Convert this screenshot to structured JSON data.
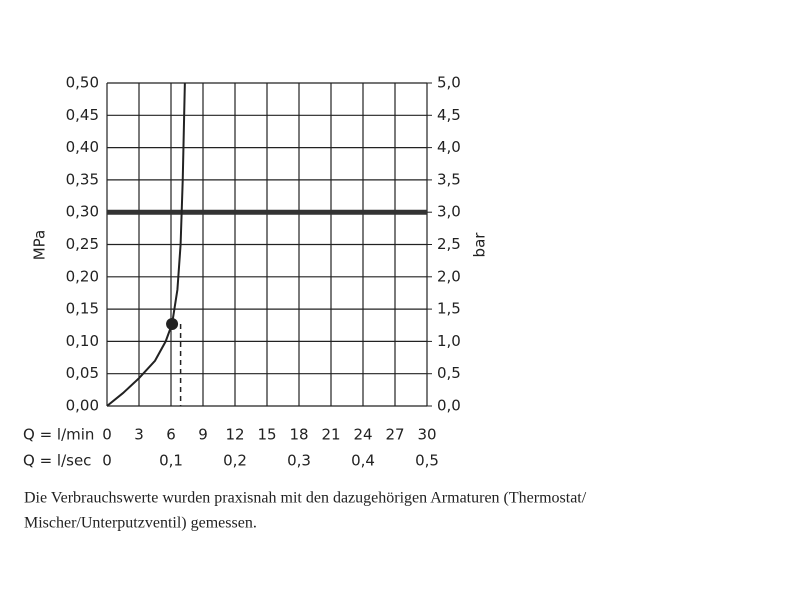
{
  "chart_data": {
    "type": "line",
    "ylabel": "MPa",
    "y2label": "bar",
    "xrow_label": "Q = l/min",
    "x2row_label": "Q = l/sec",
    "x": [
      0,
      1.5,
      3,
      4.5,
      5.5,
      6.1,
      6.6,
      6.9,
      7.1,
      7.3
    ],
    "values": [
      0,
      0.02,
      0.043,
      0.07,
      0.1,
      0.127,
      0.18,
      0.25,
      0.35,
      0.5
    ],
    "color": "#222222",
    "point": {
      "x": 6.1,
      "y": 0.127
    },
    "dashed_x": 6.9,
    "reference_y": 0.3,
    "xlim": [
      0,
      30
    ],
    "xticks": [
      0,
      3,
      6,
      9,
      12,
      15,
      18,
      21,
      24,
      27,
      30
    ],
    "x2lim": [
      0,
      0.5
    ],
    "x2ticks": [
      0,
      {
        "value": 0.1,
        "label": "0,1"
      },
      {
        "value": 0.2,
        "label": "0,2"
      },
      {
        "value": 0.3,
        "label": "0,3"
      },
      {
        "value": 0.4,
        "label": "0,4"
      },
      {
        "value": 0.5,
        "label": "0,5"
      }
    ],
    "ylim": [
      0,
      0.5
    ],
    "yticks": [
      {
        "value": 0,
        "label": "0,00"
      },
      {
        "value": 0.05,
        "label": "0,05"
      },
      {
        "value": 0.1,
        "label": "0,10"
      },
      {
        "value": 0.15,
        "label": "0,15"
      },
      {
        "value": 0.2,
        "label": "0,20"
      },
      {
        "value": 0.25,
        "label": "0,25"
      },
      {
        "value": 0.3,
        "label": "0,30"
      },
      {
        "value": 0.35,
        "label": "0,35"
      },
      {
        "value": 0.4,
        "label": "0,40"
      },
      {
        "value": 0.45,
        "label": "0,45"
      },
      {
        "value": 0.5,
        "label": "0,50"
      }
    ],
    "y2lim": [
      0,
      5
    ],
    "y2ticks": [
      {
        "value": 0,
        "label": "0,0"
      },
      {
        "value": 0.5,
        "label": "0,5"
      },
      {
        "value": 1,
        "label": "1,0"
      },
      {
        "value": 1.5,
        "label": "1,5"
      },
      {
        "value": 2,
        "label": "2,0"
      },
      {
        "value": 2.5,
        "label": "2,5"
      },
      {
        "value": 3,
        "label": "3,0"
      },
      {
        "value": 3.5,
        "label": "3,5"
      },
      {
        "value": 4,
        "label": "4,0"
      },
      {
        "value": 4.5,
        "label": "4,5"
      },
      {
        "value": 5,
        "label": "5,0"
      }
    ],
    "grid": true,
    "caption": [
      "Die Verbrauchswerte wurden praxisnah mit den dazugehörigen Armaturen (Thermostat/",
      "Mischer/Unterputzventil) gemessen."
    ]
  }
}
